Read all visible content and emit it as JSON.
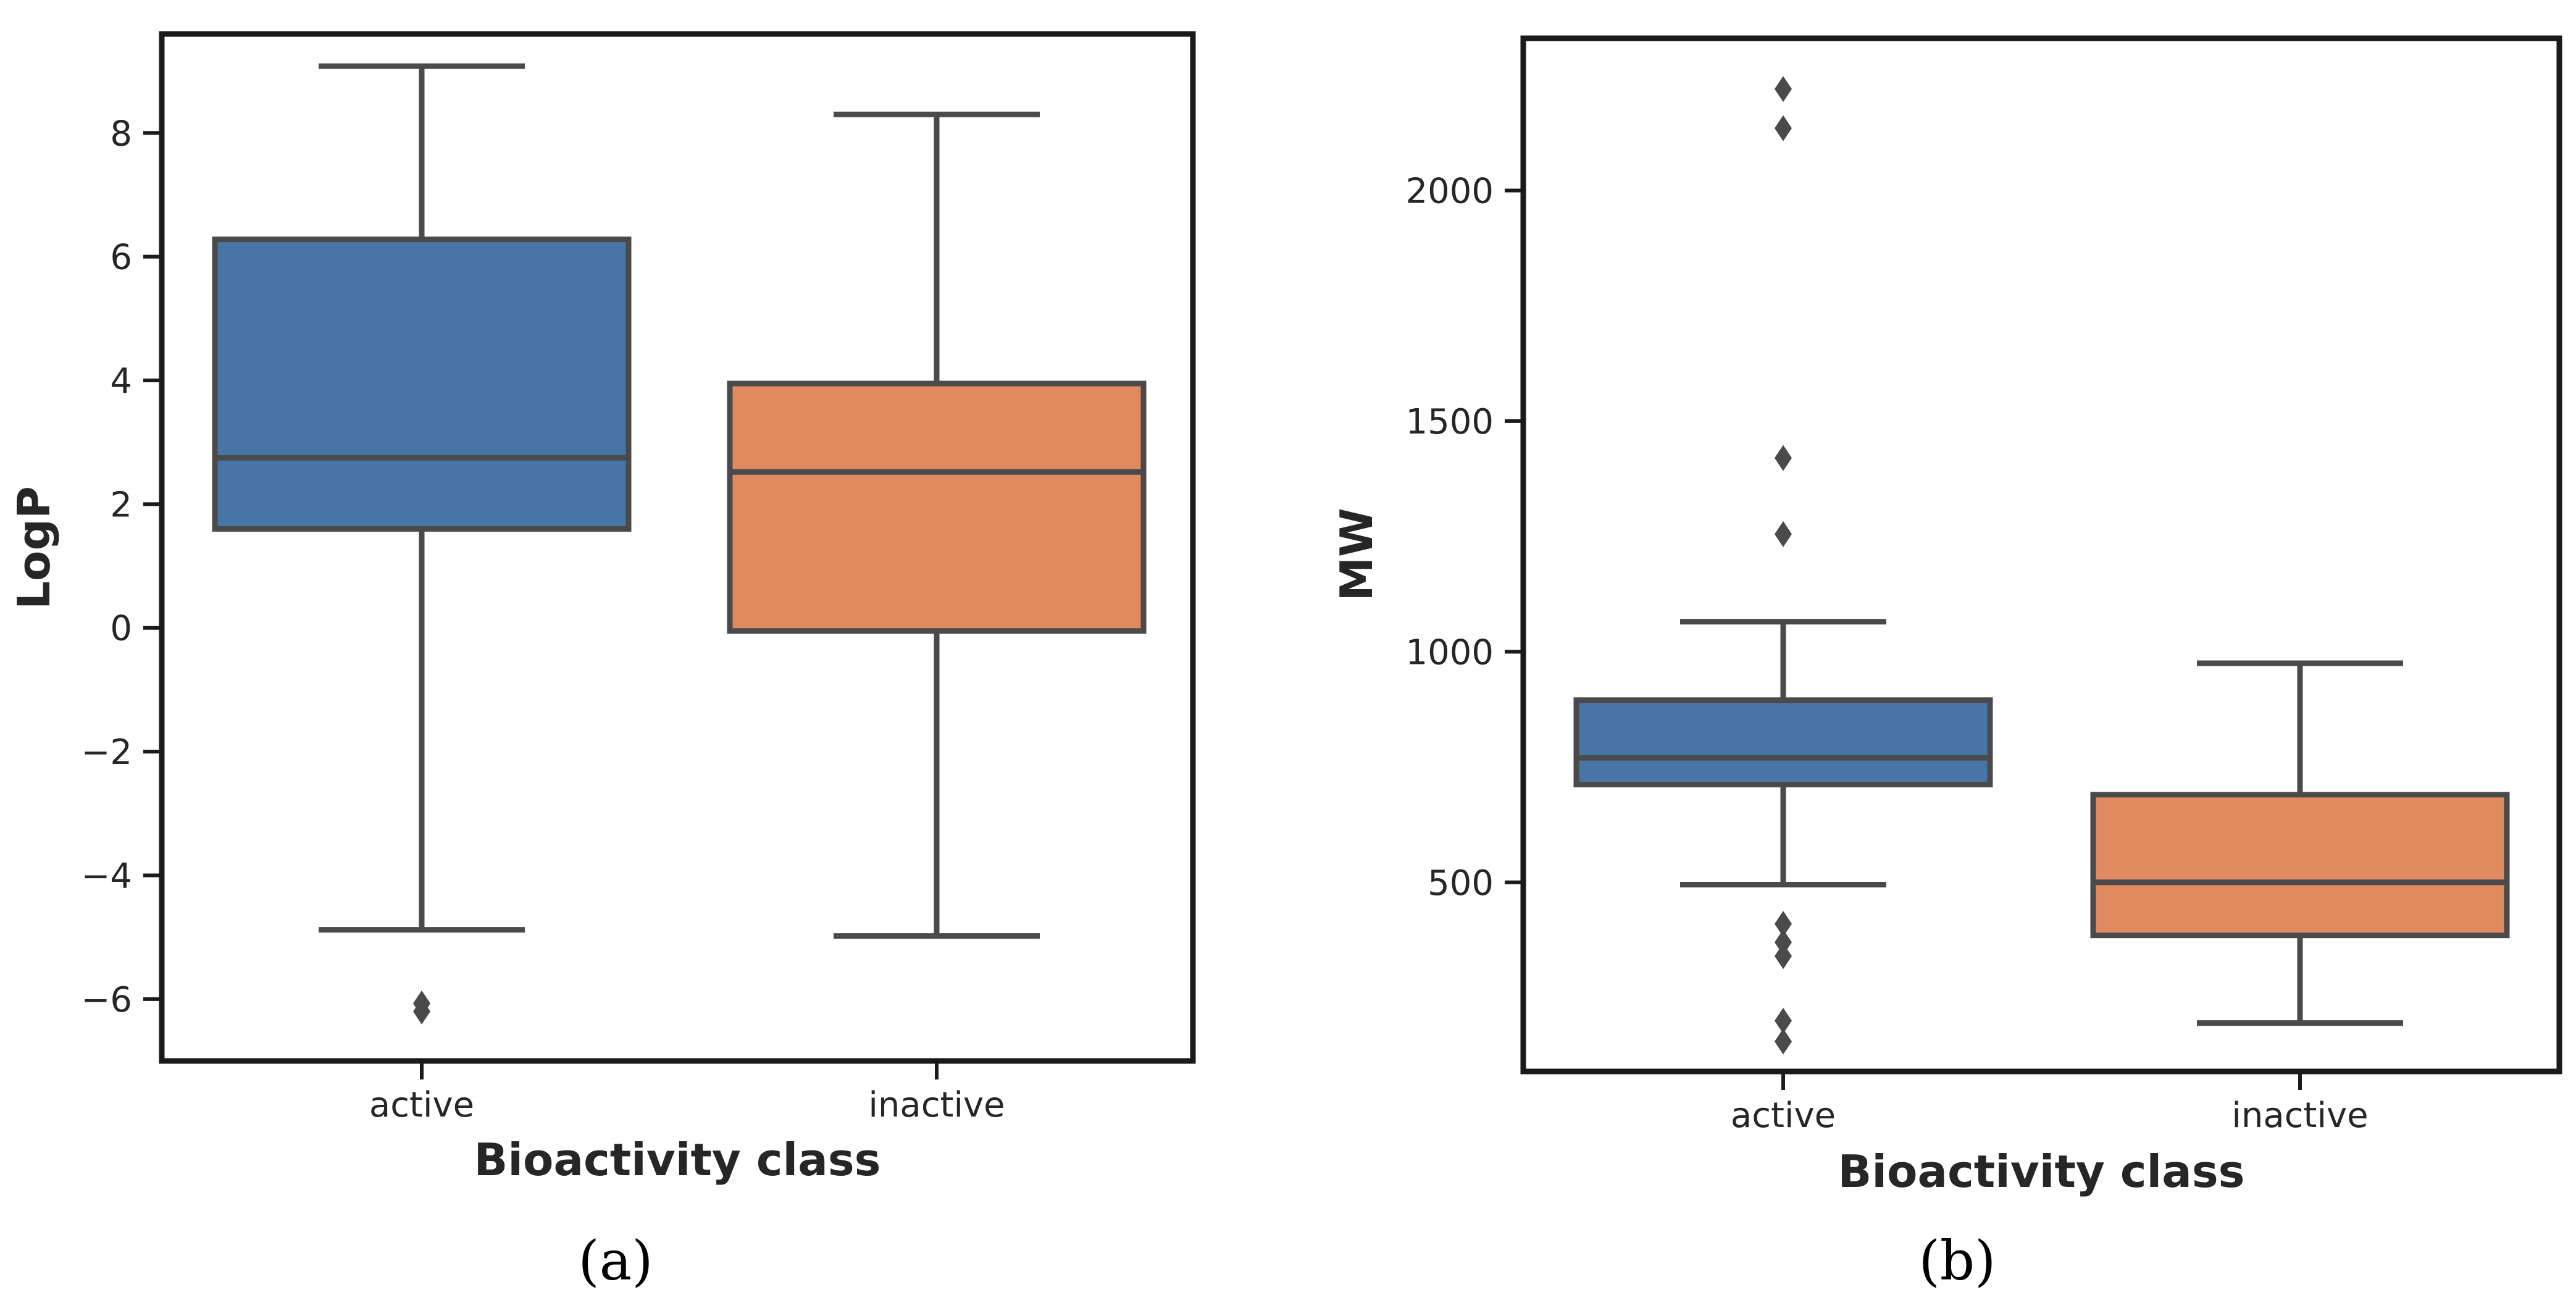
{
  "colors": {
    "active": "#4775a8",
    "inactive": "#e18a60",
    "line": "#4a4a4a",
    "frame": "#1a1a1a"
  },
  "chart_data": [
    {
      "type": "boxplot",
      "panel_label": "(a)",
      "xlabel": "Bioactivity class",
      "ylabel": "LogP",
      "categories": [
        "active",
        "inactive"
      ],
      "ylim": [
        -7.0,
        9.6
      ],
      "yticks": [
        8,
        6,
        4,
        2,
        0,
        -2,
        -4,
        -6
      ],
      "ytick_labels": [
        "8",
        "6",
        "4",
        "2",
        "0",
        "−2",
        "−4",
        "−6"
      ],
      "boxes": [
        {
          "name": "active",
          "whisker_low": -4.88,
          "q1": 1.6,
          "median": 2.75,
          "q3": 6.28,
          "whisker_high": 9.08,
          "outliers": [
            -6.07,
            -6.2
          ]
        },
        {
          "name": "inactive",
          "whisker_low": -4.98,
          "q1": -0.05,
          "median": 2.52,
          "q3": 3.95,
          "whisker_high": 8.3,
          "outliers": []
        }
      ]
    },
    {
      "type": "boxplot",
      "panel_label": "(b)",
      "xlabel": "Bioactivity class",
      "ylabel": "MW",
      "categories": [
        "active",
        "inactive"
      ],
      "ylim": [
        90,
        2330
      ],
      "yticks": [
        2000,
        1500,
        1000,
        500
      ],
      "ytick_labels": [
        "2000",
        "1500",
        "1000",
        "500"
      ],
      "boxes": [
        {
          "name": "active",
          "whisker_low": 495,
          "q1": 712,
          "median": 770,
          "q3": 895,
          "whisker_high": 1065,
          "outliers": [
            2220,
            2135,
            1420,
            1255,
            410,
            370,
            340,
            200,
            155
          ]
        },
        {
          "name": "inactive",
          "whisker_low": 195,
          "q1": 385,
          "median": 500,
          "q3": 690,
          "whisker_high": 975,
          "outliers": []
        }
      ]
    }
  ]
}
